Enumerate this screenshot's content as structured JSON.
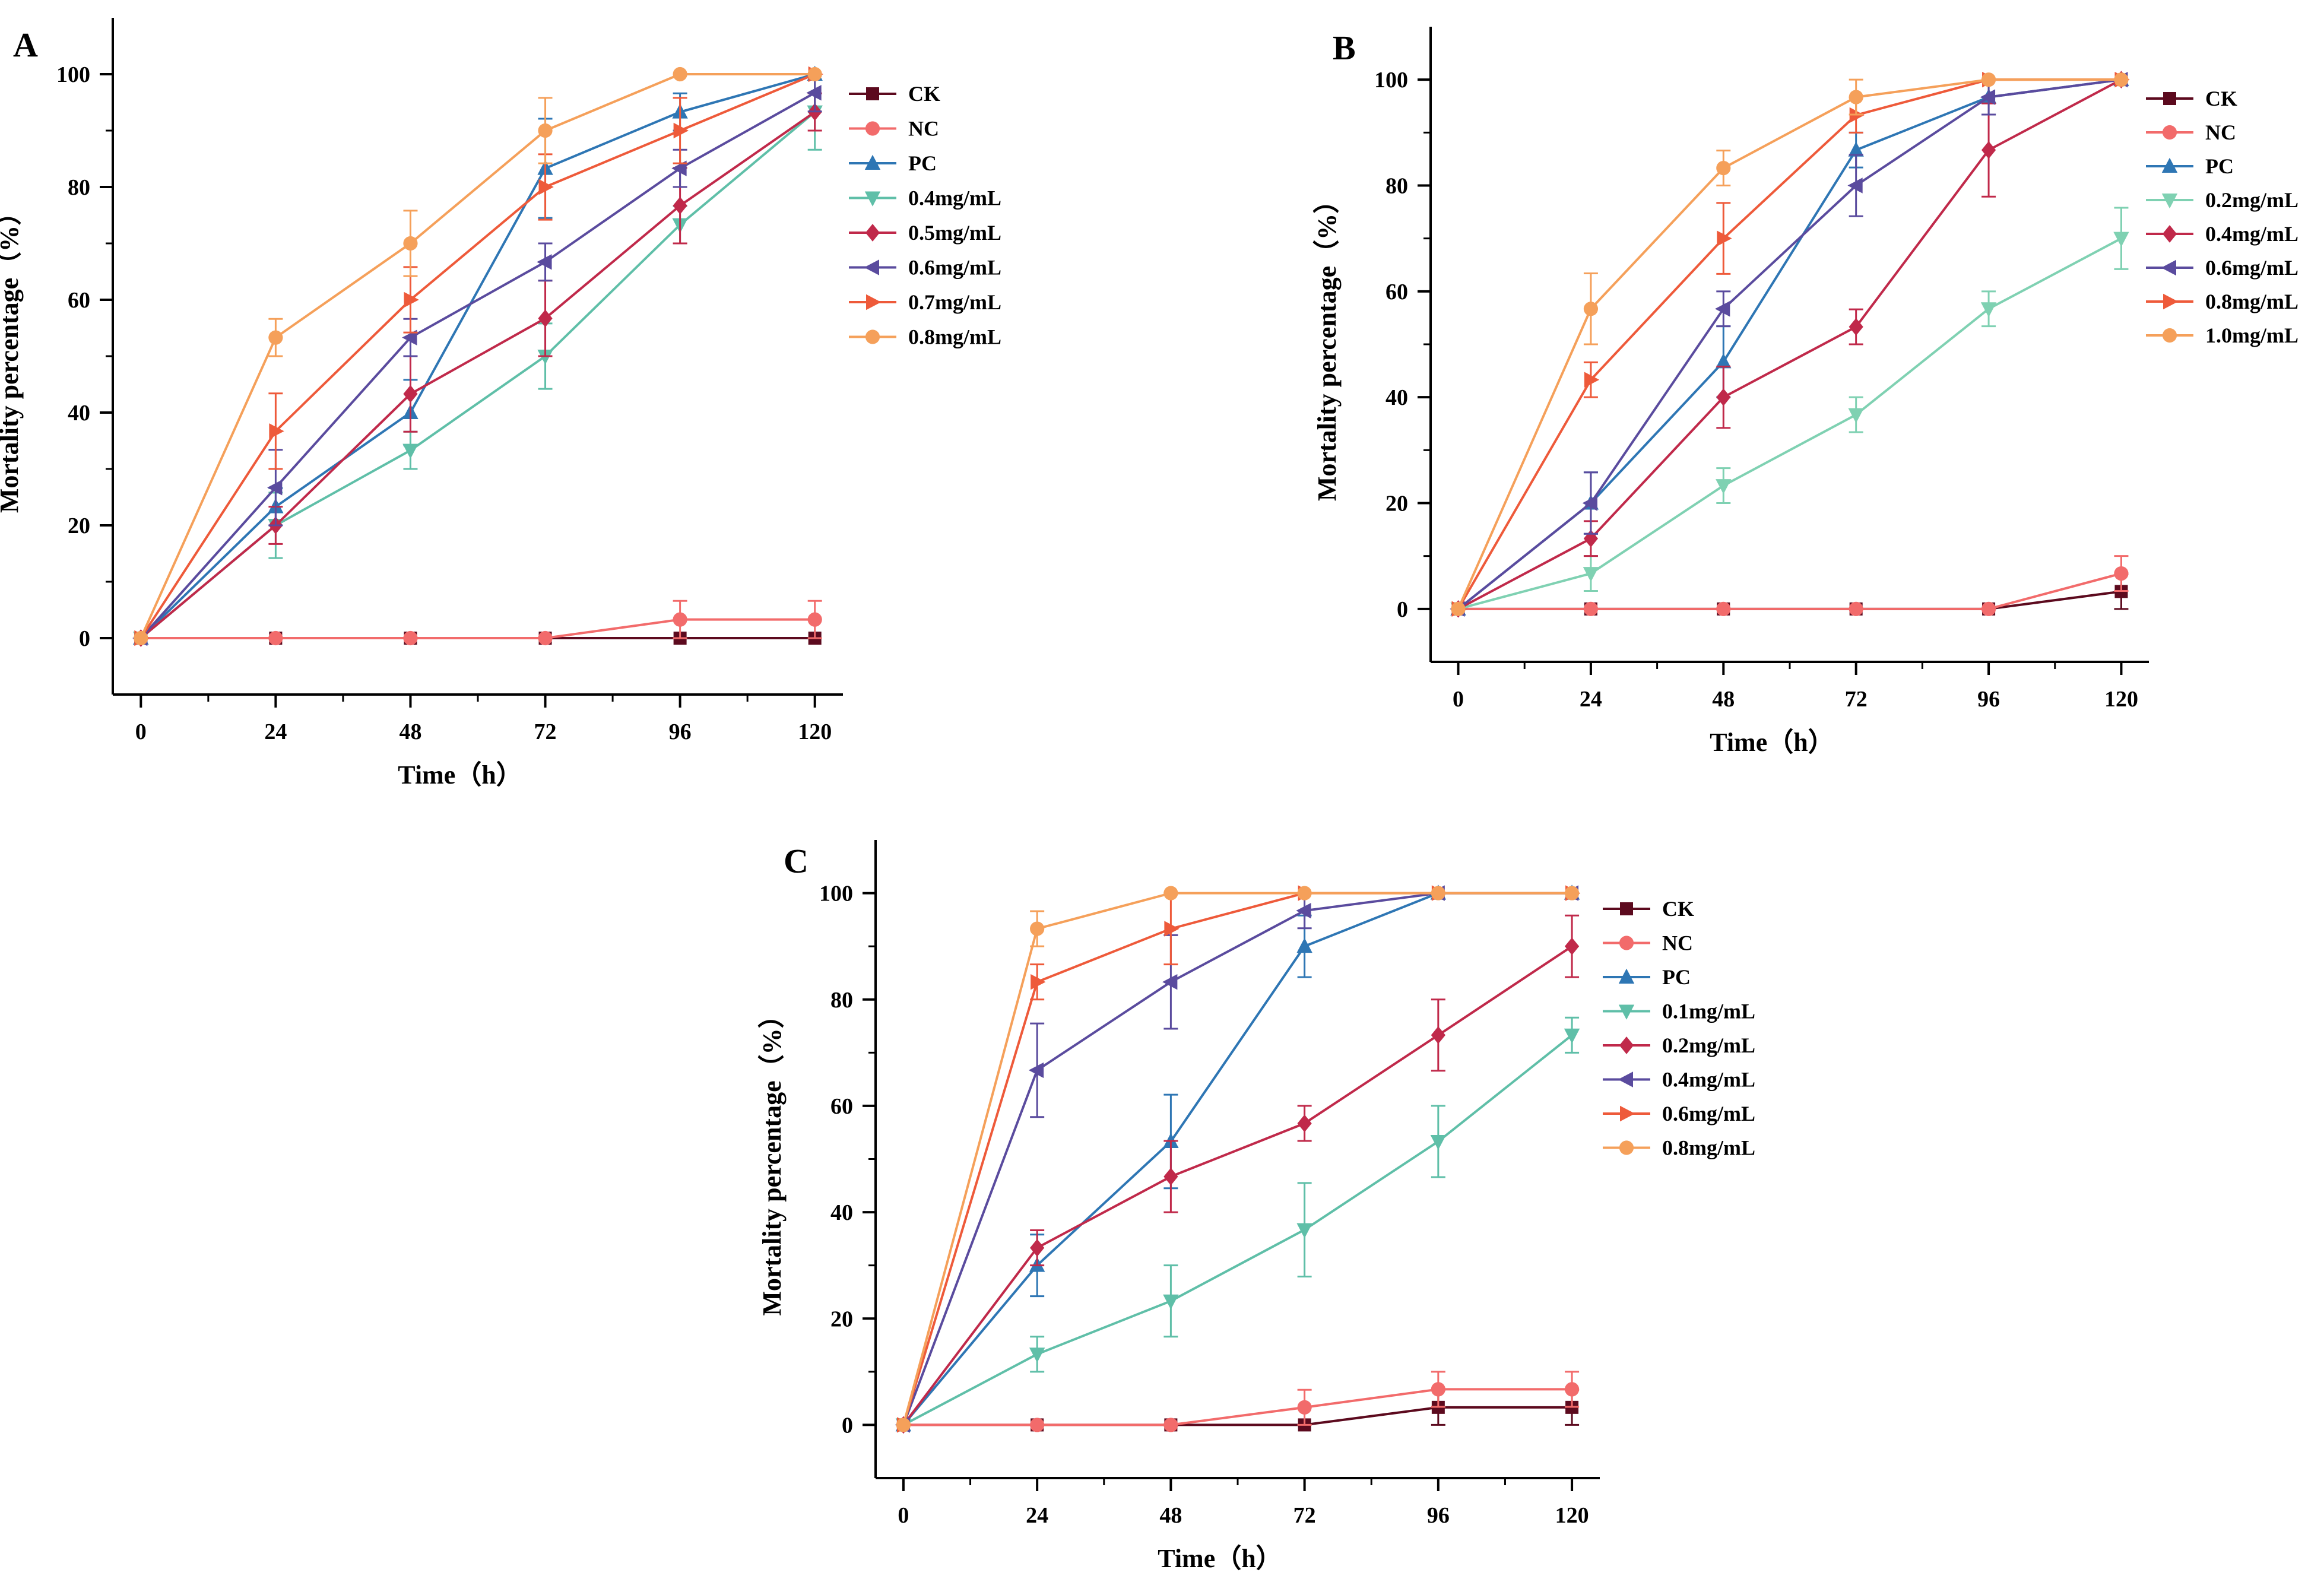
{
  "figure": {
    "description_label": "Mortality percentage over time, three panels"
  },
  "chart_data": [
    {
      "panel": "A",
      "type": "line",
      "xlabel": "Time（h）",
      "ylabel": "Mortality percentage（%）",
      "x": [
        0,
        24,
        48,
        72,
        96,
        120
      ],
      "xticks": [
        0,
        24,
        48,
        72,
        96,
        120
      ],
      "yticks": [
        0,
        20,
        40,
        60,
        80,
        100
      ],
      "xlim": [
        -5,
        125
      ],
      "ylim": [
        -10,
        110
      ],
      "series": [
        {
          "name": "CK",
          "color": "#5c0a1e",
          "marker": "square",
          "values": [
            0,
            0,
            0,
            0,
            0,
            0
          ],
          "errors": [
            0,
            0,
            0,
            0,
            0,
            0
          ]
        },
        {
          "name": "NC",
          "color": "#f26b6b",
          "marker": "circle",
          "values": [
            0,
            0,
            0,
            0,
            3.3,
            3.3
          ],
          "errors": [
            0,
            0,
            0,
            0,
            3.3,
            3.3
          ]
        },
        {
          "name": "PC",
          "color": "#2e76b4",
          "marker": "triangle-up",
          "values": [
            0,
            23.3,
            40,
            83.3,
            93.3,
            100
          ],
          "errors": [
            0,
            3.3,
            5.8,
            8.8,
            3.3,
            0
          ]
        },
        {
          "name": "0.4mg/mL",
          "color": "#5fbfa8",
          "marker": "triangle-down",
          "values": [
            0,
            20,
            33.3,
            50,
            73.3,
            93.3
          ],
          "errors": [
            0,
            5.8,
            3.3,
            5.8,
            3.3,
            6.7
          ]
        },
        {
          "name": "0.5mg/mL",
          "color": "#c0294a",
          "marker": "diamond",
          "values": [
            0,
            20,
            43.3,
            56.7,
            76.7,
            93.3
          ],
          "errors": [
            0,
            3.3,
            6.7,
            6.7,
            6.7,
            3.3
          ]
        },
        {
          "name": "0.6mg/mL",
          "color": "#5a4b9e",
          "marker": "triangle-left",
          "values": [
            0,
            26.7,
            53.3,
            66.7,
            83.3,
            96.7
          ],
          "errors": [
            0,
            6.7,
            3.3,
            3.3,
            3.3,
            3.3
          ]
        },
        {
          "name": "0.7mg/mL",
          "color": "#ee5a3a",
          "marker": "triangle-right",
          "values": [
            0,
            36.7,
            60,
            80,
            90,
            100
          ],
          "errors": [
            0,
            6.7,
            5.8,
            5.8,
            5.8,
            0
          ]
        },
        {
          "name": "0.8mg/mL",
          "color": "#f5a05a",
          "marker": "circle",
          "values": [
            0,
            53.3,
            70,
            90,
            100,
            100
          ],
          "errors": [
            0,
            3.3,
            5.8,
            5.8,
            0,
            0
          ]
        }
      ]
    },
    {
      "panel": "B",
      "type": "line",
      "xlabel": "Time（h）",
      "ylabel": "Mortality percentage（%）",
      "x": [
        0,
        24,
        48,
        72,
        96,
        120
      ],
      "xticks": [
        0,
        24,
        48,
        72,
        96,
        120
      ],
      "yticks": [
        0,
        20,
        40,
        60,
        80,
        100
      ],
      "xlim": [
        -5,
        125
      ],
      "ylim": [
        -10,
        110
      ],
      "series": [
        {
          "name": "CK",
          "color": "#5c0a1e",
          "marker": "square",
          "values": [
            0,
            0,
            0,
            0,
            0,
            3.3
          ],
          "errors": [
            0,
            0,
            0,
            0,
            0,
            3.3
          ]
        },
        {
          "name": "NC",
          "color": "#f26b6b",
          "marker": "circle",
          "values": [
            0,
            0,
            0,
            0,
            0,
            6.7
          ],
          "errors": [
            0,
            0,
            0,
            0,
            0,
            3.3
          ]
        },
        {
          "name": "PC",
          "color": "#2e76b4",
          "marker": "triangle-up",
          "values": [
            0,
            20,
            46.7,
            86.7,
            96.7,
            100
          ],
          "errors": [
            0,
            5.8,
            6.7,
            3.3,
            3.3,
            0
          ]
        },
        {
          "name": "0.2mg/mL",
          "color": "#7fd1b2",
          "marker": "triangle-down",
          "values": [
            0,
            6.7,
            23.3,
            36.7,
            56.7,
            70
          ],
          "errors": [
            0,
            3.3,
            3.3,
            3.3,
            3.3,
            5.8
          ]
        },
        {
          "name": "0.4mg/mL",
          "color": "#c0294a",
          "marker": "diamond",
          "values": [
            0,
            13.3,
            40,
            53.3,
            86.7,
            100
          ],
          "errors": [
            0,
            3.3,
            5.8,
            3.3,
            8.8,
            0
          ]
        },
        {
          "name": "0.6mg/mL",
          "color": "#5a4b9e",
          "marker": "triangle-left",
          "values": [
            0,
            20,
            56.7,
            80,
            96.7,
            100
          ],
          "errors": [
            0,
            5.8,
            3.3,
            5.8,
            3.3,
            0
          ]
        },
        {
          "name": "0.8mg/mL",
          "color": "#ee5a3a",
          "marker": "triangle-right",
          "values": [
            0,
            43.3,
            70,
            93.3,
            100,
            100
          ],
          "errors": [
            0,
            3.3,
            6.7,
            3.3,
            0,
            0
          ]
        },
        {
          "name": "1.0mg/mL",
          "color": "#f5a05a",
          "marker": "circle",
          "values": [
            0,
            56.7,
            83.3,
            96.7,
            100,
            100
          ],
          "errors": [
            0,
            6.7,
            3.3,
            3.3,
            0,
            0
          ]
        }
      ]
    },
    {
      "panel": "C",
      "type": "line",
      "xlabel": "Time（h）",
      "ylabel": "Mortality percentage（%）",
      "x": [
        0,
        24,
        48,
        72,
        96,
        120
      ],
      "xticks": [
        0,
        24,
        48,
        72,
        96,
        120
      ],
      "yticks": [
        0,
        20,
        40,
        60,
        80,
        100
      ],
      "xlim": [
        -5,
        125
      ],
      "ylim": [
        -10,
        110
      ],
      "series": [
        {
          "name": "CK",
          "color": "#5c0a1e",
          "marker": "square",
          "values": [
            0,
            0,
            0,
            0,
            3.3,
            3.3
          ],
          "errors": [
            0,
            0,
            0,
            0,
            3.3,
            3.3
          ]
        },
        {
          "name": "NC",
          "color": "#f26b6b",
          "marker": "circle",
          "values": [
            0,
            0,
            0,
            3.3,
            6.7,
            6.7
          ],
          "errors": [
            0,
            0,
            0,
            3.3,
            3.3,
            3.3
          ]
        },
        {
          "name": "PC",
          "color": "#2e76b4",
          "marker": "triangle-up",
          "values": [
            0,
            30,
            53.3,
            90,
            100,
            100
          ],
          "errors": [
            0,
            5.8,
            8.8,
            5.8,
            0,
            0
          ]
        },
        {
          "name": "0.1mg/mL",
          "color": "#5fbfa8",
          "marker": "triangle-down",
          "values": [
            0,
            13.3,
            23.3,
            36.7,
            53.3,
            73.3
          ],
          "errors": [
            0,
            3.3,
            6.7,
            8.8,
            6.7,
            3.3
          ]
        },
        {
          "name": "0.2mg/mL",
          "color": "#c0294a",
          "marker": "diamond",
          "values": [
            0,
            33.3,
            46.7,
            56.7,
            73.3,
            90
          ],
          "errors": [
            0,
            3.3,
            6.7,
            3.3,
            6.7,
            5.8
          ]
        },
        {
          "name": "0.4mg/mL",
          "color": "#5a4b9e",
          "marker": "triangle-left",
          "values": [
            0,
            66.7,
            83.3,
            96.7,
            100,
            100
          ],
          "errors": [
            0,
            8.8,
            8.8,
            3.3,
            0,
            0
          ]
        },
        {
          "name": "0.6mg/mL",
          "color": "#ee5a3a",
          "marker": "triangle-right",
          "values": [
            0,
            83.3,
            93.3,
            100,
            100,
            100
          ],
          "errors": [
            0,
            3.3,
            6.7,
            0,
            0,
            0
          ]
        },
        {
          "name": "0.8mg/mL",
          "color": "#f5a05a",
          "marker": "circle",
          "values": [
            0,
            93.3,
            100,
            100,
            100,
            100
          ],
          "errors": [
            0,
            3.3,
            0,
            0,
            0,
            0
          ]
        }
      ]
    }
  ]
}
